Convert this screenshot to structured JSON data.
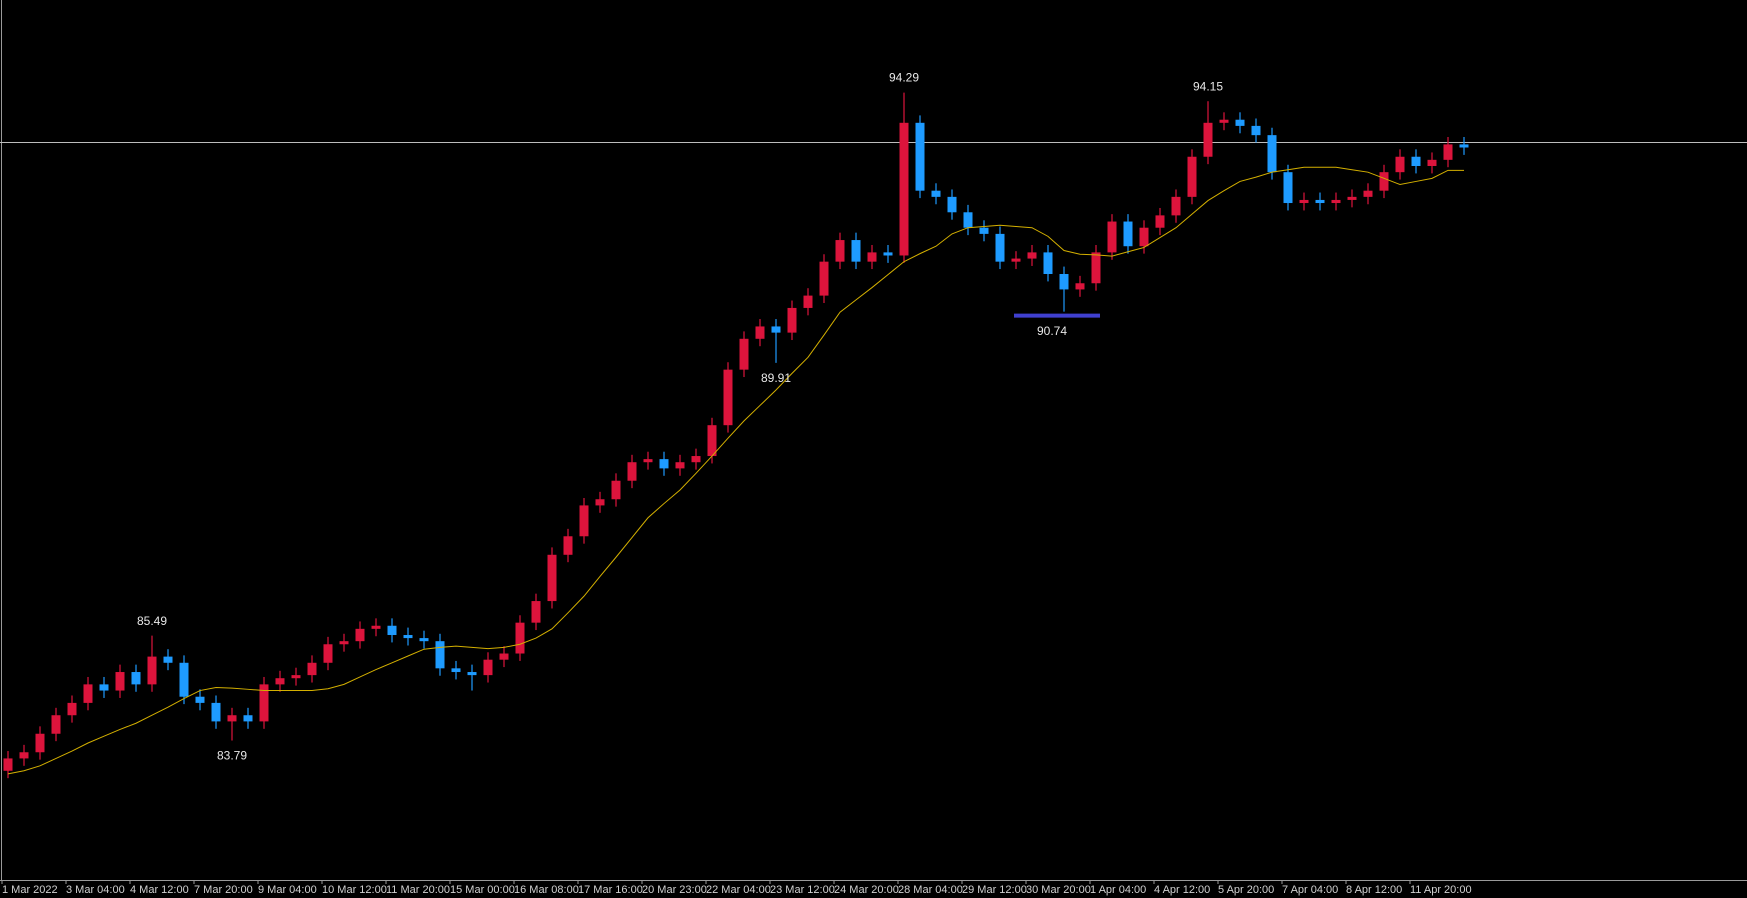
{
  "chart_data": {
    "type": "candlestick",
    "categories": [
      "1 Mar 2022",
      null,
      null,
      null,
      "3 Mar 04:00",
      null,
      null,
      null,
      "4 Mar 12:00",
      null,
      null,
      null,
      "7 Mar 20:00",
      null,
      null,
      null,
      "9 Mar 04:00",
      null,
      null,
      null,
      "10 Mar 12:00",
      null,
      null,
      null,
      "11 Mar 20:00",
      null,
      null,
      null,
      "15 Mar 00:00",
      null,
      null,
      null,
      "16 Mar 08:00",
      null,
      null,
      null,
      "17 Mar 16:00",
      null,
      null,
      null,
      "20 Mar 23:00",
      null,
      null,
      null,
      "22 Mar 04:00",
      null,
      null,
      null,
      "23 Mar 12:00",
      null,
      null,
      null,
      "24 Mar 20:00",
      null,
      null,
      null,
      "28 Mar 04:00",
      null,
      null,
      null,
      "29 Mar 12:00",
      null,
      null,
      null,
      "30 Mar 20:00",
      null,
      null,
      null,
      "1 Apr 04:00",
      null,
      null,
      null,
      "4 Apr 12:00",
      null,
      null,
      null,
      "5 Apr 20:00",
      null,
      null,
      null,
      "7 Apr 04:00",
      null,
      null,
      null,
      "8 Apr 12:00",
      null,
      null,
      null,
      "11 Apr 20:00",
      null,
      null,
      null
    ],
    "open": [
      83.3,
      83.5,
      83.6,
      83.9,
      84.2,
      84.4,
      84.7,
      84.6,
      84.9,
      84.7,
      85.15,
      85.05,
      84.5,
      84.4,
      84.1,
      84.2,
      84.1,
      84.7,
      84.8,
      84.85,
      85.05,
      85.35,
      85.4,
      85.6,
      85.65,
      85.5,
      85.45,
      85.4,
      84.96,
      84.9,
      84.85,
      85.1,
      85.2,
      85.7,
      86.05,
      86.8,
      87.1,
      87.6,
      87.7,
      88.0,
      88.3,
      88.35,
      88.2,
      88.3,
      88.4,
      88.9,
      89.8,
      90.3,
      90.5,
      90.4,
      90.8,
      91.0,
      91.55,
      91.9,
      91.55,
      91.7,
      91.65,
      93.8,
      92.7,
      92.6,
      92.35,
      92.1,
      92.0,
      91.55,
      91.6,
      91.7,
      91.35,
      91.1,
      91.2,
      91.7,
      92.2,
      91.8,
      92.1,
      92.3,
      92.6,
      93.25,
      93.8,
      93.85,
      93.75,
      93.6,
      93.0,
      92.5,
      92.55,
      92.5,
      92.55,
      92.6,
      92.7,
      93.0,
      93.25,
      93.1,
      93.2,
      93.45
    ],
    "high": [
      83.62,
      83.72,
      84.02,
      84.32,
      84.52,
      84.82,
      84.82,
      85.02,
      85.02,
      85.49,
      85.27,
      85.17,
      84.62,
      84.52,
      84.32,
      84.32,
      84.82,
      84.92,
      84.97,
      85.17,
      85.47,
      85.52,
      85.72,
      85.77,
      85.77,
      85.62,
      85.57,
      85.52,
      85.08,
      85.02,
      85.22,
      85.32,
      85.82,
      86.17,
      86.92,
      87.22,
      87.72,
      87.82,
      88.12,
      88.42,
      88.47,
      88.47,
      88.42,
      88.52,
      89.02,
      89.92,
      90.42,
      90.62,
      90.62,
      90.92,
      91.12,
      91.67,
      92.02,
      92.02,
      91.82,
      91.82,
      94.29,
      93.92,
      92.82,
      92.72,
      92.47,
      92.22,
      92.12,
      91.72,
      91.82,
      91.82,
      91.47,
      91.32,
      91.82,
      92.32,
      92.32,
      92.22,
      92.42,
      92.72,
      93.37,
      94.15,
      93.97,
      93.97,
      93.87,
      93.72,
      93.12,
      92.67,
      92.67,
      92.67,
      92.72,
      92.82,
      93.12,
      93.37,
      93.37,
      93.32,
      93.57,
      93.57
    ],
    "low": [
      83.18,
      83.38,
      83.48,
      83.78,
      84.08,
      84.28,
      84.48,
      84.48,
      84.58,
      84.58,
      84.93,
      84.38,
      84.28,
      83.98,
      83.79,
      83.98,
      83.98,
      84.58,
      84.68,
      84.73,
      84.93,
      85.23,
      85.28,
      85.48,
      85.38,
      85.33,
      85.28,
      84.84,
      84.78,
      84.6,
      84.73,
      84.98,
      85.08,
      85.58,
      85.93,
      86.68,
      86.98,
      87.48,
      87.58,
      87.88,
      88.18,
      88.08,
      88.08,
      88.18,
      88.28,
      88.78,
      89.68,
      90.18,
      89.91,
      90.28,
      90.68,
      90.88,
      91.43,
      91.43,
      91.43,
      91.53,
      91.53,
      92.58,
      92.48,
      92.23,
      91.98,
      91.88,
      91.43,
      91.43,
      91.48,
      91.23,
      90.74,
      90.98,
      91.08,
      91.58,
      91.68,
      91.68,
      91.98,
      92.18,
      92.48,
      93.13,
      93.68,
      93.63,
      93.48,
      92.88,
      92.38,
      92.38,
      92.38,
      92.38,
      92.43,
      92.48,
      92.58,
      92.88,
      92.98,
      92.98,
      93.08,
      93.28
    ],
    "close": [
      83.5,
      83.6,
      83.9,
      84.2,
      84.4,
      84.7,
      84.6,
      84.9,
      84.7,
      85.15,
      85.05,
      84.5,
      84.4,
      84.1,
      84.2,
      84.1,
      84.7,
      84.8,
      84.85,
      85.05,
      85.35,
      85.4,
      85.6,
      85.65,
      85.5,
      85.45,
      85.4,
      84.96,
      84.9,
      84.85,
      85.1,
      85.2,
      85.7,
      86.05,
      86.8,
      87.1,
      87.6,
      87.7,
      88.0,
      88.3,
      88.35,
      88.2,
      88.3,
      88.4,
      88.9,
      89.8,
      90.3,
      90.5,
      90.4,
      90.8,
      91.0,
      91.55,
      91.9,
      91.55,
      91.7,
      91.65,
      93.8,
      92.7,
      92.6,
      92.35,
      92.1,
      92.0,
      91.55,
      91.6,
      91.7,
      91.35,
      91.1,
      91.2,
      91.7,
      92.2,
      91.8,
      92.1,
      92.3,
      92.6,
      93.25,
      93.8,
      93.85,
      93.75,
      93.6,
      93.0,
      92.5,
      92.55,
      92.5,
      92.55,
      92.6,
      92.7,
      93.0,
      93.25,
      93.1,
      93.2,
      93.45,
      93.4
    ],
    "up_color": "#dc143c",
    "down_color": "#1e9bff",
    "ylim": [
      81.53,
      95.79
    ],
    "moving_average": {
      "color": "#d4b000",
      "values": [
        83.25,
        83.3,
        83.38,
        83.5,
        83.62,
        83.75,
        83.86,
        83.97,
        84.07,
        84.2,
        84.33,
        84.47,
        84.6,
        84.65,
        84.64,
        84.62,
        84.6,
        84.6,
        84.6,
        84.6,
        84.63,
        84.7,
        84.82,
        84.94,
        85.05,
        85.16,
        85.27,
        85.3,
        85.32,
        85.3,
        85.28,
        85.3,
        85.35,
        85.45,
        85.6,
        85.86,
        86.13,
        86.45,
        86.76,
        87.08,
        87.4,
        87.63,
        87.85,
        88.12,
        88.4,
        88.69,
        88.97,
        89.22,
        89.47,
        89.74,
        90.0,
        90.36,
        90.73,
        90.93,
        91.13,
        91.34,
        91.55,
        91.68,
        91.8,
        92.0,
        92.1,
        92.12,
        92.14,
        92.12,
        92.1,
        91.96,
        91.73,
        91.67,
        91.66,
        91.64,
        91.71,
        91.78,
        91.94,
        92.1,
        92.32,
        92.54,
        92.7,
        92.85,
        92.92,
        93.0,
        93.04,
        93.08,
        93.08,
        93.08,
        93.04,
        93.0,
        92.9,
        92.8,
        92.85,
        92.9,
        93.03,
        93.03
      ]
    },
    "hline": {
      "value": 93.48,
      "color": "#bdbdbd"
    },
    "high_labels": [
      85.49,
      94.29,
      94.15
    ],
    "low_labels": [
      83.79,
      89.91,
      90.74
    ],
    "level_color": "#4040d0"
  }
}
